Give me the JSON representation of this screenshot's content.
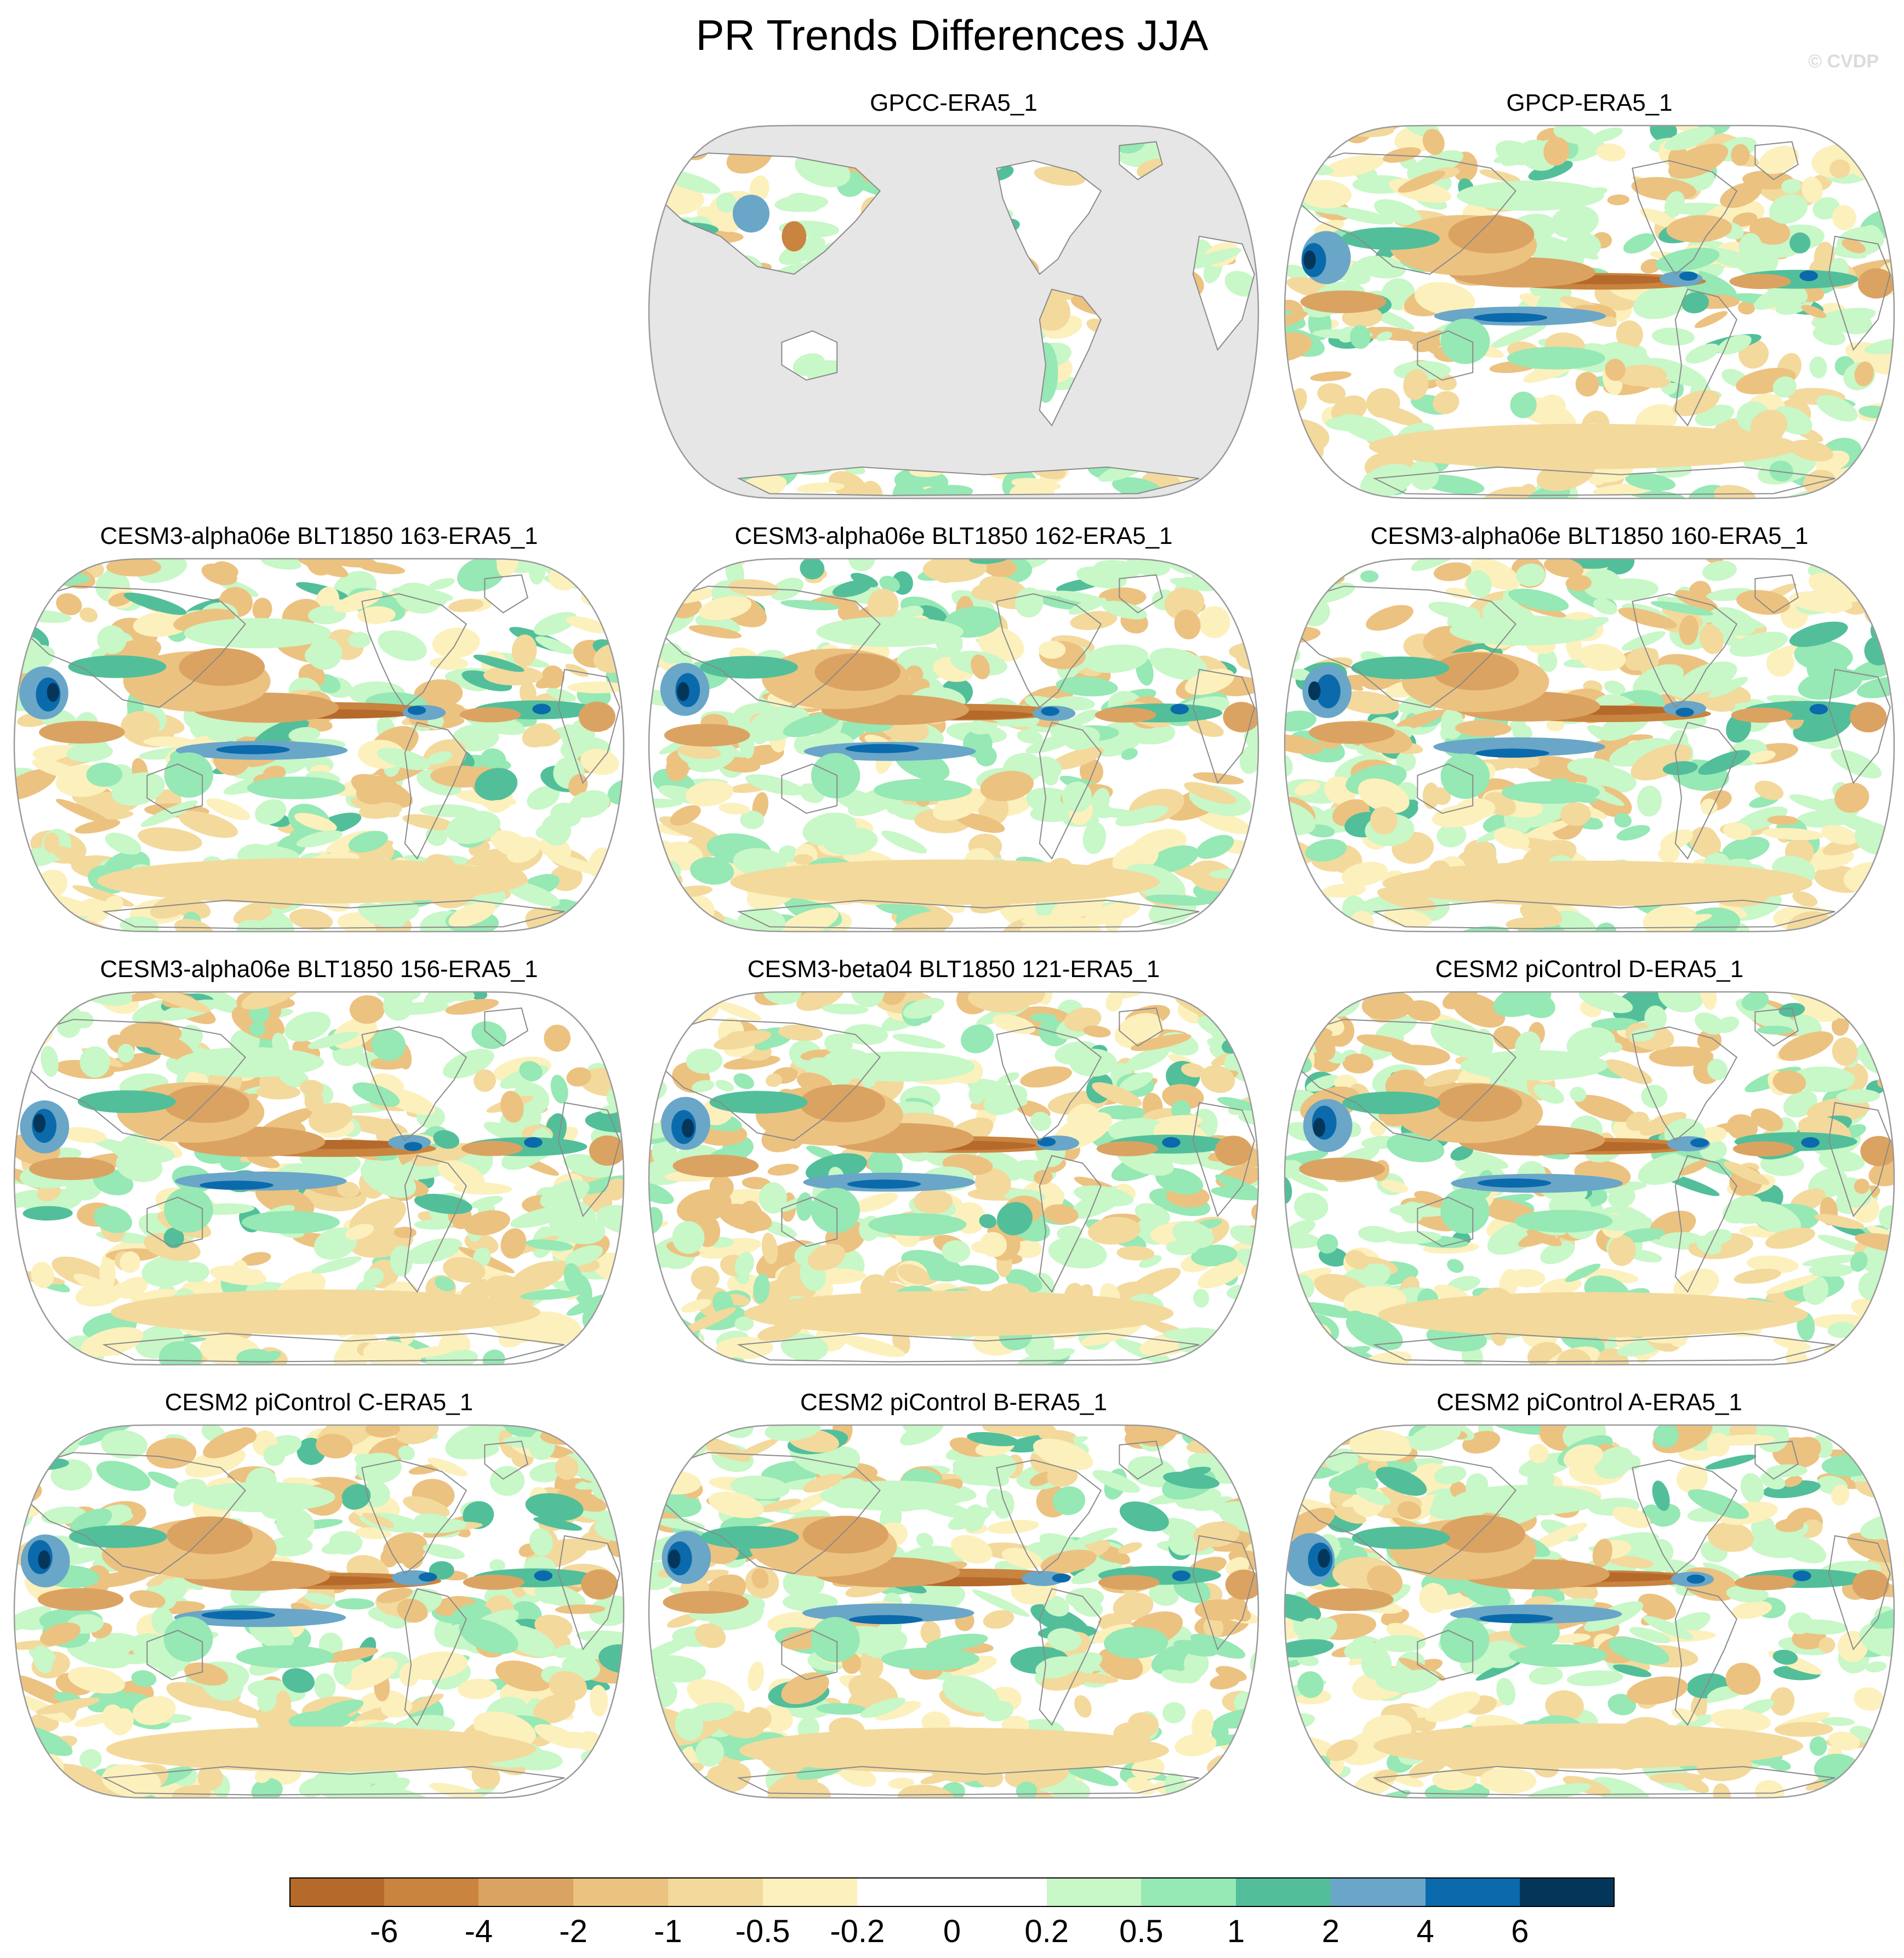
{
  "figure": {
    "title": "PR Trends Differences JJA",
    "watermark": "© CVDP"
  },
  "chart_data": {
    "type": "heatmap",
    "projection": "Robinson",
    "map_center": "Pacific",
    "land_mask_color_panel_1": "#e6e6e6",
    "panels": [
      {
        "name": "GPCC-ERA5_1",
        "row": 0,
        "col": 1,
        "land_only": true
      },
      {
        "name": "GPCP-ERA5_1",
        "row": 0,
        "col": 2,
        "land_only": false
      },
      {
        "name": "CESM3-alpha06e BLT1850 163-ERA5_1",
        "row": 1,
        "col": 0,
        "land_only": false
      },
      {
        "name": "CESM3-alpha06e BLT1850 162-ERA5_1",
        "row": 1,
        "col": 1,
        "land_only": false
      },
      {
        "name": "CESM3-alpha06e BLT1850 160-ERA5_1",
        "row": 1,
        "col": 2,
        "land_only": false
      },
      {
        "name": "CESM3-alpha06e BLT1850 156-ERA5_1",
        "row": 2,
        "col": 0,
        "land_only": false
      },
      {
        "name": "CESM3-beta04 BLT1850 121-ERA5_1",
        "row": 2,
        "col": 1,
        "land_only": false
      },
      {
        "name": "CESM2 piControl D-ERA5_1",
        "row": 2,
        "col": 2,
        "land_only": false
      },
      {
        "name": "CESM2 piControl C-ERA5_1",
        "row": 3,
        "col": 0,
        "land_only": false
      },
      {
        "name": "CESM2 piControl B-ERA5_1",
        "row": 3,
        "col": 1,
        "land_only": false
      },
      {
        "name": "CESM2 piControl A-ERA5_1",
        "row": 3,
        "col": 2,
        "land_only": false
      }
    ],
    "colorbar": {
      "levels": [
        "-6",
        "-4",
        "-2",
        "-1",
        "-0.5",
        "-0.2",
        "0",
        "0.2",
        "0.5",
        "1",
        "2",
        "4",
        "6"
      ],
      "colors": [
        "#b5692b",
        "#c9843f",
        "#dba362",
        "#ecc281",
        "#f3d99c",
        "#fcf0bd",
        "#ffffff",
        "#ffffff",
        "#c8f7c8",
        "#96e8b4",
        "#52bf9a",
        "#6aa6c8",
        "#0b6aab",
        "#043659"
      ]
    }
  }
}
